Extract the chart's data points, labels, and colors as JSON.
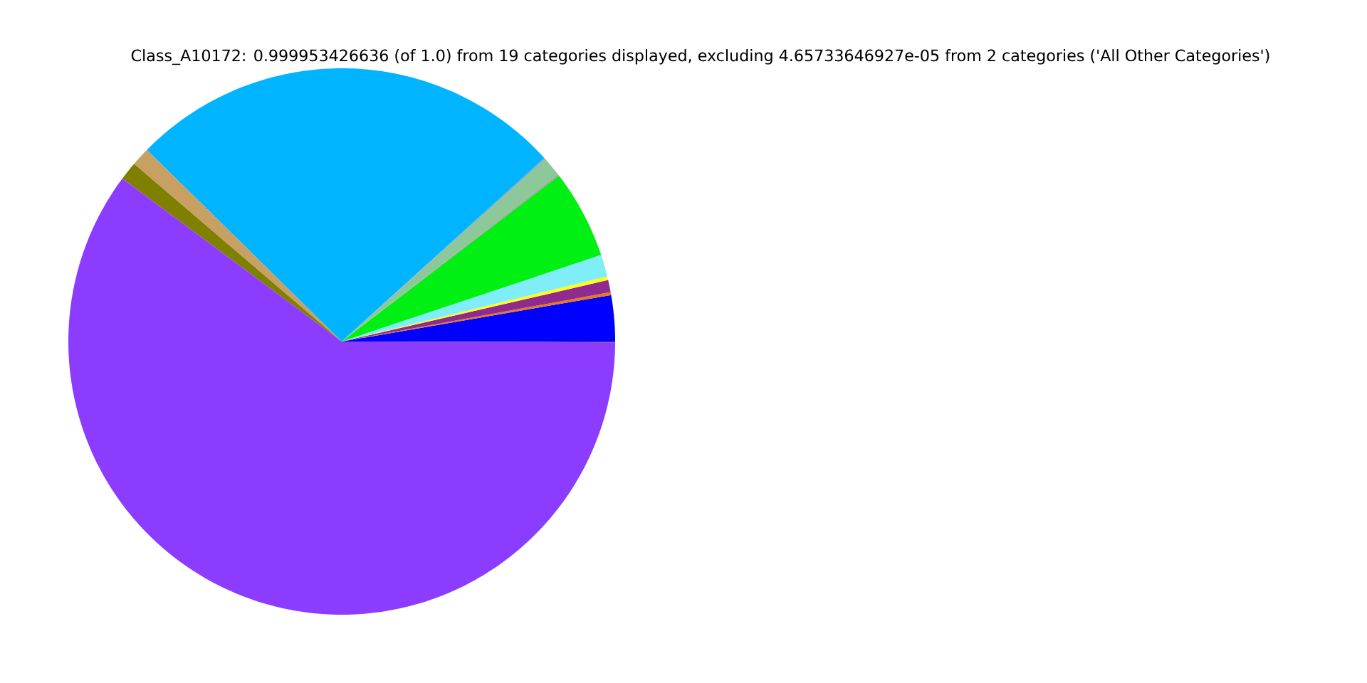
{
  "chart_data": {
    "type": "pie",
    "title": "Class_A10172: 0.999953426636 (of 1.0) from 19 categories displayed, excluding 4.65733646927e-05 from 2 categories ('All Other Categories')",
    "categories": [
      null,
      null,
      null,
      null,
      null,
      null,
      null,
      null,
      null,
      null,
      null,
      null,
      null,
      null
    ],
    "values": [
      2.72,
      0.17,
      0.72,
      0.22,
      1.3,
      5.25,
      0.1,
      1.17,
      0.08,
      25.9,
      1.1,
      1.1,
      60.12,
      0.05
    ],
    "colors": [
      "#0000ff",
      "#e8781a",
      "#912a8e",
      "#ffff1a",
      "#80eef6",
      "#00f014",
      "#a0a0a0",
      "#8cc89a",
      "#7fa0c0",
      "#00b4ff",
      "#c8a064",
      "#808000",
      "#8c3cff",
      "#5c4a5c"
    ]
  }
}
